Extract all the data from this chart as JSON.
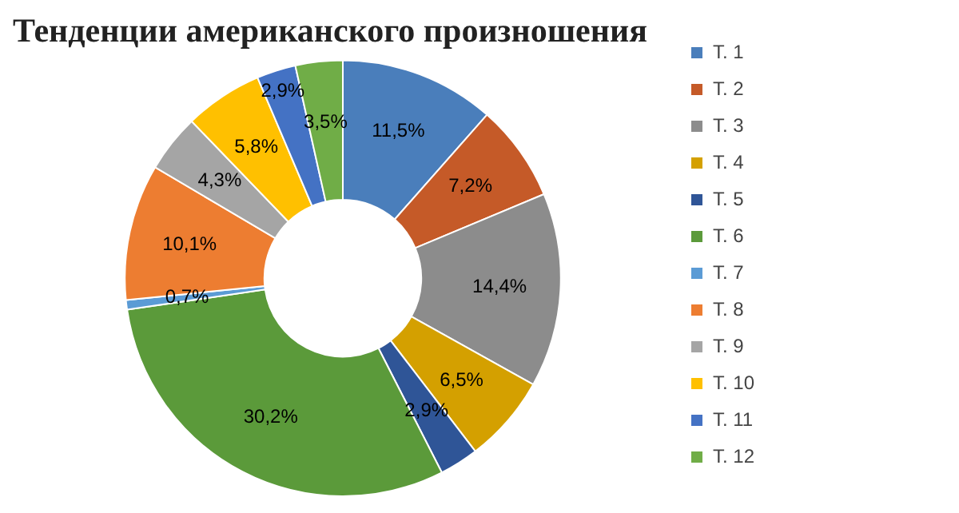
{
  "chart_data": {
    "type": "donut",
    "title": "Тенденции американского произношения",
    "categories": [
      "Т. 1",
      "Т. 2",
      "Т. 3",
      "Т. 4",
      "Т. 5",
      "Т. 6",
      "Т. 7",
      "Т. 8",
      "Т. 9",
      "Т. 10",
      "Т. 11",
      "Т. 12"
    ],
    "values": [
      11.5,
      7.2,
      14.4,
      6.5,
      2.9,
      30.2,
      0.7,
      10.1,
      4.3,
      5.8,
      2.9,
      3.5
    ],
    "value_labels": [
      "11,5%",
      "7,2%",
      "14,4%",
      "6,5%",
      "2,9%",
      "30,2%",
      "0,7%",
      "10,1%",
      "4,3%",
      "5,8%",
      "2,9%",
      "3,5%"
    ],
    "colors": [
      "#4a7ebb",
      "#c55a28",
      "#8c8c8c",
      "#d4a000",
      "#2f5597",
      "#5b9a3a",
      "#5b9bd5",
      "#ed7d31",
      "#a5a5a5",
      "#ffc000",
      "#4472c4",
      "#70ad47"
    ],
    "legend": "right"
  }
}
